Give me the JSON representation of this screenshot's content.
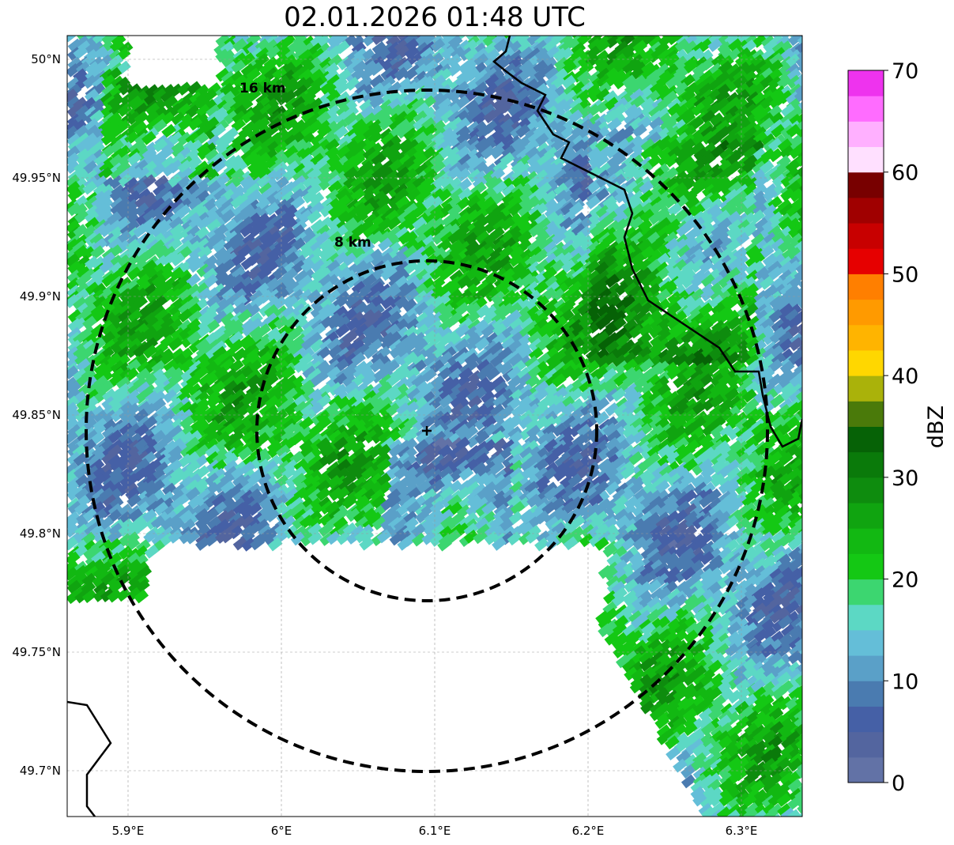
{
  "title": "02.01.2026 01:48 UTC",
  "ring_labels": [
    "16 km",
    "8 km"
  ],
  "lon_ticks": [
    {
      "value": 5.9,
      "label": "5.9°E"
    },
    {
      "value": 6.0,
      "label": "6°E"
    },
    {
      "value": 6.1,
      "label": "6.1°E"
    },
    {
      "value": 6.2,
      "label": "6.2°E"
    },
    {
      "value": 6.3,
      "label": "6.3°E"
    }
  ],
  "lat_ticks": [
    {
      "value": 50.0,
      "label": "50°N"
    },
    {
      "value": 49.95,
      "label": "49.95°N"
    },
    {
      "value": 49.9,
      "label": "49.9°N"
    },
    {
      "value": 49.85,
      "label": "49.85°N"
    },
    {
      "value": 49.8,
      "label": "49.8°N"
    },
    {
      "value": 49.75,
      "label": "49.75°N"
    },
    {
      "value": 49.7,
      "label": "49.7°N"
    }
  ],
  "colorbar": {
    "label": "dBZ",
    "min": 0,
    "max": 70,
    "step": 2.5,
    "ticks": [
      "0",
      "10",
      "20",
      "30",
      "40",
      "50",
      "60",
      "70"
    ],
    "colors": [
      "#6272a6",
      "#53659f",
      "#4560a6",
      "#4a7bb0",
      "#5aa0c8",
      "#64bed8",
      "#5cd8c4",
      "#3cd670",
      "#14c814",
      "#12b812",
      "#10a410",
      "#0e8c0e",
      "#0a7a0a",
      "#066206",
      "#4a7a0a",
      "#aab20a",
      "#ffd700",
      "#ffb400",
      "#ff9a00",
      "#ff7f00",
      "#e60000",
      "#c80000",
      "#a00000",
      "#780000",
      "#ffe0ff",
      "#ffb0ff",
      "#ff6cff",
      "#ee33ee"
    ]
  }
}
